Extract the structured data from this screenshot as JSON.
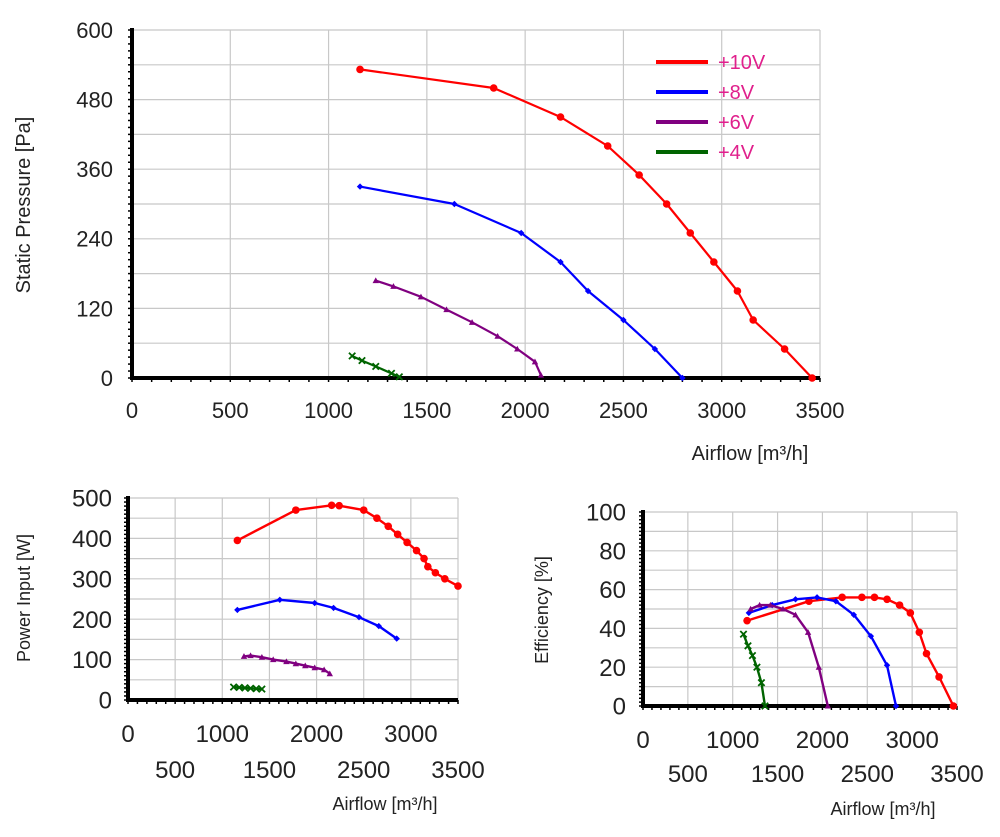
{
  "chart_data": [
    {
      "id": "static_pressure",
      "type": "line",
      "title": "",
      "xlabel": "Airflow [m³/h]",
      "ylabel": "Static Pressure [Pa]",
      "xlim": [
        0,
        3500
      ],
      "ylim": [
        0,
        600
      ],
      "x_ticks": [
        0,
        500,
        1000,
        1500,
        2000,
        2500,
        3000,
        3500
      ],
      "y_ticks": [
        0,
        120,
        240,
        360,
        480,
        600
      ],
      "grid": true,
      "legend": "top-right",
      "series": [
        {
          "name": "+10V",
          "color": "#ff0000",
          "marker": "circle",
          "x": [
            1160,
            1840,
            2180,
            2420,
            2580,
            2720,
            2840,
            2960,
            3080,
            3160,
            3320,
            3460
          ],
          "y": [
            532,
            500,
            450,
            400,
            350,
            300,
            250,
            200,
            150,
            100,
            50,
            0
          ]
        },
        {
          "name": "+8V",
          "color": "#0000ff",
          "marker": "diamond",
          "x": [
            1160,
            1640,
            1980,
            2180,
            2320,
            2500,
            2660,
            2800
          ],
          "y": [
            330,
            300,
            250,
            200,
            150,
            100,
            50,
            0
          ]
        },
        {
          "name": "+6V",
          "color": "#800080",
          "marker": "triangle",
          "x": [
            1240,
            1330,
            1470,
            1600,
            1730,
            1860,
            1960,
            2050,
            2080
          ],
          "y": [
            168,
            158,
            140,
            118,
            96,
            72,
            50,
            28,
            5
          ]
        },
        {
          "name": "+4V",
          "color": "#006400",
          "marker": "x",
          "x": [
            1120,
            1170,
            1240,
            1320,
            1360
          ],
          "y": [
            38,
            30,
            20,
            8,
            2
          ]
        }
      ]
    },
    {
      "id": "power_input",
      "type": "line",
      "title": "",
      "xlabel": "Airflow [m³/h]",
      "ylabel": "Power Input [W]",
      "xlim": [
        0,
        3500
      ],
      "ylim": [
        0,
        500
      ],
      "x_ticks_top": [
        "0",
        "1000",
        "2000",
        "3000"
      ],
      "x_ticks_bottom": [
        "500",
        "1500",
        "2500",
        "3500"
      ],
      "y_ticks": [
        0,
        100,
        200,
        300,
        400,
        500
      ],
      "grid": true,
      "series": [
        {
          "name": "",
          "color": "#ff0000",
          "marker": "circle",
          "x": [
            1160,
            1780,
            2160,
            2240,
            2500,
            2640,
            2760,
            2860,
            2960,
            3060,
            3140,
            3180,
            3260,
            3360,
            3500
          ],
          "y": [
            395,
            470,
            482,
            481,
            470,
            450,
            430,
            410,
            390,
            370,
            350,
            330,
            315,
            300,
            282
          ]
        },
        {
          "name": "",
          "color": "#0000ff",
          "marker": "diamond",
          "x": [
            1160,
            1610,
            1980,
            2180,
            2450,
            2660,
            2850
          ],
          "y": [
            223,
            248,
            240,
            228,
            205,
            183,
            152
          ]
        },
        {
          "name": "",
          "color": "#800080",
          "marker": "triangle",
          "x": [
            1230,
            1300,
            1420,
            1540,
            1680,
            1780,
            1880,
            1980,
            2080,
            2140
          ],
          "y": [
            108,
            110,
            106,
            100,
            95,
            90,
            85,
            80,
            75,
            65
          ]
        },
        {
          "name": "",
          "color": "#006400",
          "marker": "x",
          "x": [
            1120,
            1180,
            1240,
            1300,
            1360,
            1420
          ],
          "y": [
            32,
            31,
            30,
            29,
            28,
            27
          ]
        }
      ]
    },
    {
      "id": "efficiency",
      "type": "line",
      "title": "",
      "xlabel": "Airflow [m³/h]",
      "ylabel": "Efficiency [%]",
      "xlim": [
        0,
        3500
      ],
      "ylim": [
        0,
        100
      ],
      "x_ticks_top": [
        "0",
        "1000",
        "2000",
        "3000"
      ],
      "x_ticks_bottom": [
        "500",
        "1500",
        "2500",
        "3500"
      ],
      "y_ticks": [
        0,
        20,
        40,
        60,
        80,
        100
      ],
      "grid": true,
      "series": [
        {
          "name": "",
          "color": "#ff0000",
          "marker": "circle",
          "x": [
            1160,
            1850,
            2220,
            2440,
            2580,
            2720,
            2860,
            2980,
            3080,
            3160,
            3300,
            3460
          ],
          "y": [
            44,
            54,
            56,
            56,
            56,
            55,
            52,
            48,
            38,
            27,
            15,
            0
          ]
        },
        {
          "name": "",
          "color": "#0000ff",
          "marker": "diamond",
          "x": [
            1180,
            1440,
            1700,
            1940,
            2150,
            2350,
            2540,
            2720,
            2820
          ],
          "y": [
            48,
            52,
            55,
            56,
            54,
            47,
            36,
            21,
            0
          ]
        },
        {
          "name": "",
          "color": "#800080",
          "marker": "triangle",
          "x": [
            1200,
            1300,
            1420,
            1560,
            1700,
            1840,
            1960,
            2060
          ],
          "y": [
            50,
            52,
            52,
            50,
            47,
            38,
            20,
            0
          ]
        },
        {
          "name": "",
          "color": "#006400",
          "marker": "x",
          "x": [
            1120,
            1170,
            1220,
            1270,
            1320,
            1360
          ],
          "y": [
            37,
            31,
            26,
            20,
            12,
            0
          ]
        }
      ]
    }
  ]
}
